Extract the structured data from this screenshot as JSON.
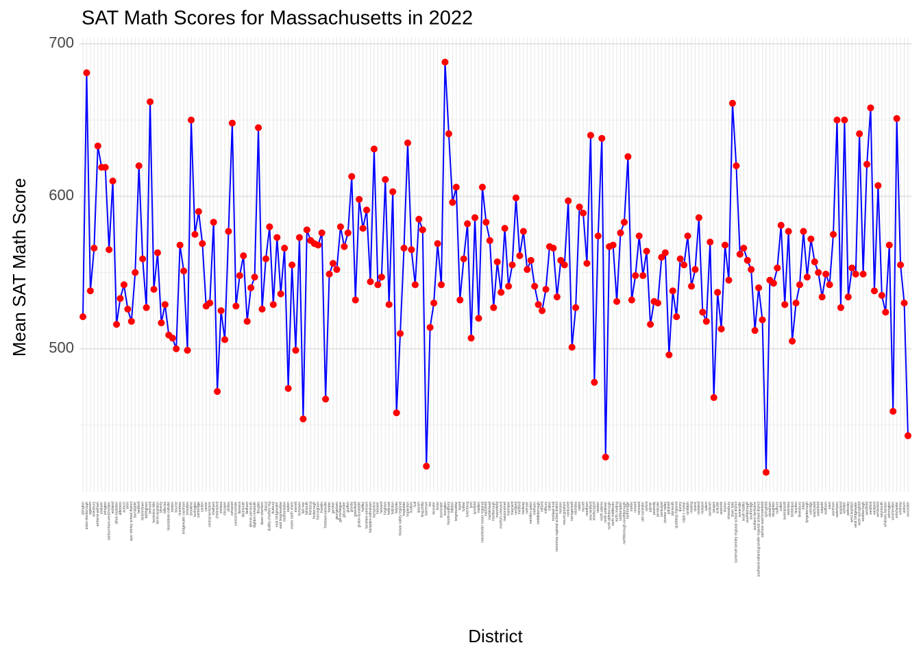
{
  "chart_data": {
    "type": "line",
    "title": "SAT Math Scores for Massachusetts in 2022",
    "x_label": "District",
    "y_label": "Mean SAT Math Score",
    "categories": [
      "abington",
      "acton-boxborough",
      "agawam",
      "amesbury",
      "amherst-pelham",
      "andover",
      "arlington",
      "ashburnham-westminster",
      "ashland",
      "athol-royalston",
      "attleboro",
      "auburn",
      "avon",
      "ayer shirley school district",
      "barnstable",
      "bedford",
      "belchertown",
      "bellingham",
      "belmont",
      "berkshire hills",
      "berlin-boylston",
      "beverly",
      "billerica",
      "blackstone-millville",
      "boston",
      "bourne",
      "braintree",
      "bridgewater-raynham",
      "brockton",
      "brookline",
      "burlington",
      "cambridge",
      "canton",
      "carver",
      "central berkshire",
      "chatham",
      "chelmsford",
      "chelsea",
      "chicopee",
      "clinton",
      "cohasset",
      "concord-carlisle",
      "danvers",
      "dartmouth",
      "dedham",
      "dennis-yarmouth",
      "dighton-rehoboth",
      "douglas",
      "dover-sherborn",
      "dracut",
      "dudley-charlton reg",
      "duxbury",
      "east bridgewater",
      "east longmeadow",
      "easthampton",
      "easton",
      "essex north shore",
      "everett",
      "fairhaven",
      "fall river",
      "falmouth",
      "fitchburg",
      "foxborough",
      "framingham",
      "franklin",
      "freetown-lakeville",
      "frontier",
      "gardner",
      "georgetown",
      "gill-montague",
      "gloucester",
      "grafton",
      "granby",
      "greenfield",
      "groton-dunstable",
      "hadley",
      "hamilton-wenham",
      "hampden-wilbraham",
      "hampshire",
      "hanover",
      "harvard",
      "hingham",
      "holbrook",
      "holliston",
      "holyoke",
      "hoosac valley regional",
      "hopedale",
      "hopkinton",
      "hudson",
      "hull",
      "ipswich",
      "king philip",
      "lawrence",
      "lee",
      "leicester",
      "lenox",
      "leominster",
      "lexington",
      "lincoln-sudbury",
      "littleton",
      "longmeadow",
      "lowell",
      "ludlow",
      "lunenburg",
      "lynn",
      "lynnfield",
      "malden",
      "manchester essex regional",
      "mansfield",
      "marblehead",
      "marlborough",
      "marshfield",
      "martha's vineyard",
      "masconomet",
      "mashpee",
      "maynard",
      "medfield",
      "medford",
      "medway",
      "melrose",
      "mendon-upton",
      "methuen",
      "middleborough",
      "milford",
      "millbury",
      "milton",
      "mohawk trail",
      "monomoy regional school district",
      "monson",
      "mount greylock",
      "nantucket",
      "narragansett",
      "nashoba",
      "natick",
      "nauset",
      "needham",
      "new bedford",
      "newburyport",
      "newton",
      "north adams",
      "north andover",
      "north attleborough",
      "north middlesex",
      "north reading",
      "northampton",
      "northborough-southborough",
      "northbridge",
      "norton",
      "norwell",
      "norwood",
      "old rochester",
      "oxford",
      "palmer",
      "peabody",
      "pembroke",
      "pentucket",
      "pioneer valley",
      "pittsfield",
      "plymouth",
      "quabbog regional",
      "quincy",
      "ralph c mahar",
      "randolph",
      "reading",
      "revere",
      "rockland",
      "rockport",
      "salem",
      "sandwich",
      "saugus",
      "scituate",
      "seekonk",
      "sharon",
      "shrewsbury",
      "silver lake",
      "somerset berkley regional school district",
      "somerville",
      "south hadley",
      "southborough",
      "southbridge",
      "southern berkshire",
      "southwick-tolland-granville regional school district",
      "spencer-east brookfield",
      "springfield",
      "stoneham",
      "stoughton",
      "sudbury",
      "sutton",
      "swampscott",
      "swansea",
      "tantasqua",
      "taunton",
      "tewksbury",
      "triton",
      "tyngsborough",
      "uxbridge",
      "wachusett",
      "wakefield",
      "walpole",
      "waltham",
      "ware",
      "wareham",
      "watertown",
      "wayland",
      "webster",
      "wellesley",
      "west boylston",
      "west bridgewater",
      "west springfield",
      "westborough",
      "westfield",
      "westford",
      "westport",
      "westwood",
      "weymouth",
      "whitman-hanson",
      "wilmington",
      "winchendon",
      "winchester",
      "winthrop",
      "woburn",
      "worcester"
    ],
    "values": [
      521,
      681,
      538,
      566,
      633,
      619,
      619,
      565,
      610,
      516,
      533,
      542,
      526,
      518,
      550,
      620,
      559,
      527,
      662,
      539,
      563,
      517,
      529,
      509,
      507,
      500,
      568,
      551,
      499,
      650,
      575,
      590,
      569,
      528,
      530,
      583,
      472,
      525,
      506,
      577,
      648,
      528,
      548,
      561,
      518,
      540,
      547,
      645,
      526,
      559,
      580,
      529,
      573,
      536,
      566,
      474,
      555,
      499,
      573,
      454,
      578,
      571,
      569,
      568,
      576,
      467,
      549,
      556,
      552,
      580,
      567,
      576,
      613,
      532,
      598,
      579,
      591,
      544,
      631,
      542,
      547,
      611,
      529,
      603,
      458,
      510,
      566,
      635,
      565,
      542,
      585,
      578,
      423,
      514,
      530,
      569,
      542,
      688,
      641,
      596,
      606,
      532,
      559,
      582,
      507,
      586,
      520,
      606,
      583,
      571,
      527,
      557,
      537,
      579,
      541,
      555,
      599,
      561,
      577,
      552,
      558,
      541,
      529,
      525,
      539,
      567,
      566,
      534,
      558,
      555,
      597,
      501,
      527,
      593,
      589,
      556,
      640,
      478,
      574,
      638,
      429,
      567,
      568,
      531,
      576,
      583,
      626,
      532,
      548,
      574,
      548,
      564,
      516,
      531,
      530,
      560,
      563,
      496,
      538,
      521,
      559,
      555,
      574,
      541,
      552,
      586,
      524,
      518,
      570,
      468,
      537,
      513,
      568,
      545,
      661,
      620,
      562,
      566,
      558,
      552,
      512,
      540,
      519,
      419,
      545,
      543,
      553,
      581,
      529,
      577,
      505,
      530,
      542,
      577,
      547,
      572,
      557,
      550,
      534,
      549,
      542,
      575,
      650,
      527,
      650,
      534,
      553,
      549,
      641,
      549,
      621,
      658,
      538,
      607,
      535,
      524,
      568,
      459,
      651,
      555,
      530,
      443
    ],
    "line_color": "#0000ff",
    "marker_color": "#ff0000",
    "ylim": [
      406,
      704
    ],
    "yticks": [
      500,
      600,
      700
    ],
    "yticks_minor": [
      450,
      550,
      650
    ],
    "grid": true
  }
}
